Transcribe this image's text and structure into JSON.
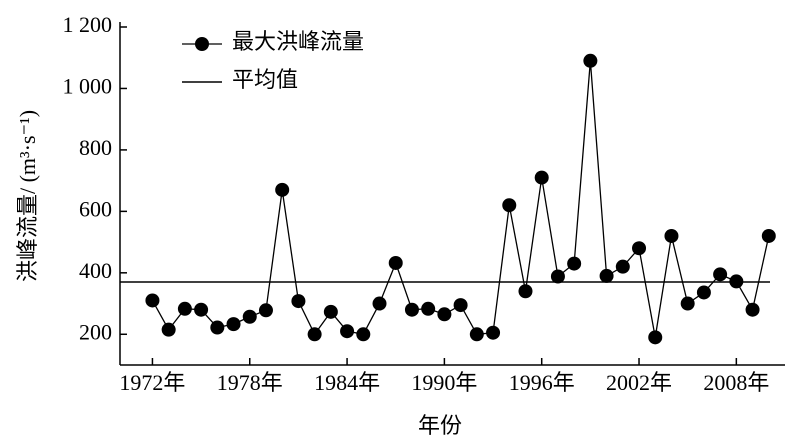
{
  "chart_data": {
    "type": "line",
    "xlabel": "年份",
    "ylabel": "洪峰流量/ (m³·s⁻¹)",
    "x": [
      1972,
      1973,
      1974,
      1975,
      1976,
      1977,
      1978,
      1979,
      1980,
      1981,
      1982,
      1983,
      1984,
      1985,
      1986,
      1987,
      1988,
      1989,
      1990,
      1991,
      1992,
      1993,
      1994,
      1995,
      1996,
      1997,
      1998,
      1999,
      2000,
      2001,
      2002,
      2003,
      2004,
      2005,
      2006,
      2007,
      2008,
      2009,
      2010
    ],
    "series": [
      {
        "name": "最大洪峰流量",
        "color": "#000000",
        "values": [
          310,
          215,
          283,
          280,
          222,
          233,
          257,
          278,
          670,
          308,
          200,
          273,
          210,
          200,
          300,
          432,
          280,
          283,
          265,
          295,
          200,
          205,
          620,
          340,
          710,
          388,
          430,
          1090,
          390,
          420,
          480,
          190,
          520,
          300,
          336,
          395,
          372,
          280,
          520
        ]
      }
    ],
    "mean_line": {
      "name": "平均值",
      "value": 370,
      "color": "#000000"
    },
    "xlim": [
      1970,
      2011
    ],
    "ylim": [
      100,
      1200
    ],
    "xticks": [
      {
        "value": 1972,
        "label": "1972年"
      },
      {
        "value": 1978,
        "label": "1978年"
      },
      {
        "value": 1984,
        "label": "1984年"
      },
      {
        "value": 1990,
        "label": "1990年"
      },
      {
        "value": 1996,
        "label": "1996年"
      },
      {
        "value": 2002,
        "label": "2002年"
      },
      {
        "value": 2008,
        "label": "2008年"
      }
    ],
    "yticks": [
      200,
      400,
      600,
      800,
      {
        "value": 1000,
        "label": "1 000"
      },
      {
        "value": 1200,
        "label": "1 200"
      }
    ],
    "legend": "upper left",
    "grid": false
  }
}
